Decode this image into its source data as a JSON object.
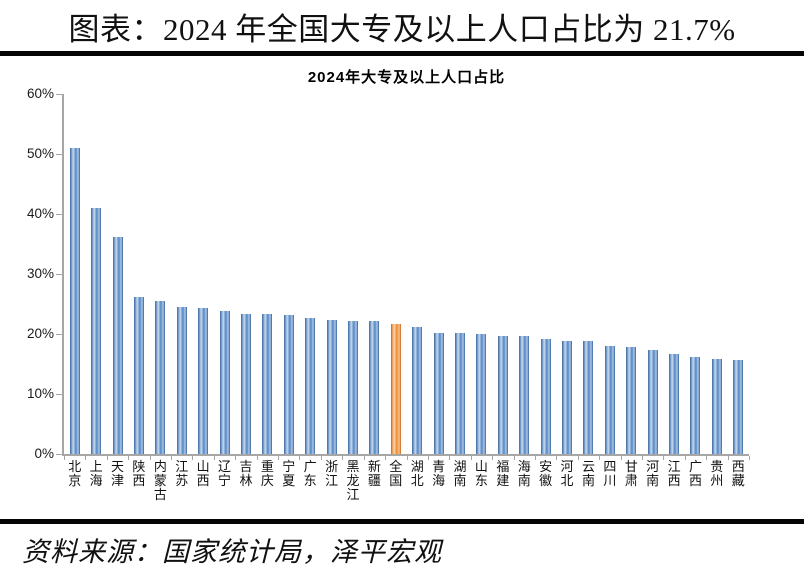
{
  "header": {
    "title": "图表：2024 年全国大专及以上人口占比为 21.7%"
  },
  "chart_data": {
    "type": "bar",
    "title": "2024年大专及以上人口占比",
    "categories": [
      "北京",
      "上海",
      "天津",
      "陕西",
      "内蒙古",
      "江苏",
      "山西",
      "辽宁",
      "吉林",
      "重庆",
      "宁夏",
      "广东",
      "浙江",
      "黑龙江",
      "新疆",
      "全国",
      "湖北",
      "青海",
      "湖南",
      "山东",
      "福建",
      "海南",
      "安徽",
      "河北",
      "云南",
      "四川",
      "甘肃",
      "河南",
      "江西",
      "广西",
      "贵州",
      "西藏"
    ],
    "values": [
      51.0,
      41.0,
      36.2,
      26.1,
      25.5,
      24.5,
      24.4,
      23.8,
      23.4,
      23.3,
      23.2,
      22.7,
      22.3,
      22.2,
      22.2,
      21.7,
      21.2,
      20.2,
      20.1,
      20.0,
      19.7,
      19.6,
      19.2,
      18.9,
      18.8,
      18.0,
      17.8,
      17.4,
      16.6,
      16.2,
      15.8,
      15.6
    ],
    "unit": "%",
    "highlight_category": "全国",
    "highlight_index": 15,
    "highlight_value": 21.7,
    "bar_color": "#6493ca",
    "highlight_color": "#f2953f",
    "axis_color": "#a6a6a6",
    "y_ticks": [
      "0%",
      "10%",
      "20%",
      "30%",
      "40%",
      "50%",
      "60%"
    ],
    "ylim": [
      0,
      60
    ],
    "grid": false,
    "legend": false,
    "x_label_orientation": "vertical"
  },
  "footer": {
    "source": "资料来源：国家统计局，泽平宏观"
  }
}
